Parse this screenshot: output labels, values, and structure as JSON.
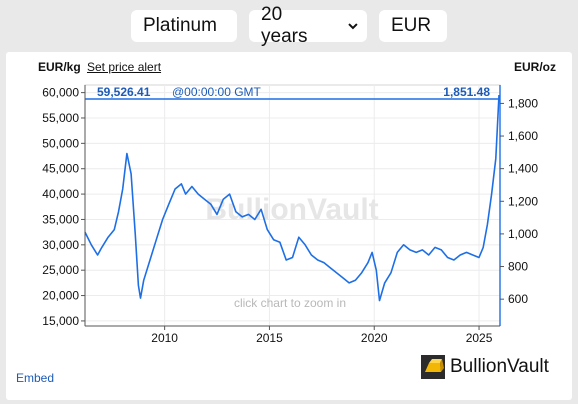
{
  "selectors": {
    "metal": "Platinum",
    "period": "20 years",
    "currency": "EUR"
  },
  "header": {
    "left_unit": "EUR/kg",
    "price_alert": "Set price alert",
    "right_unit": "EUR/oz"
  },
  "readout": {
    "kg_value": "59,526.41",
    "time": "@00:00:00 GMT",
    "oz_value": "1,851.48"
  },
  "watermark": "BullionVault",
  "hint": "click chart to zoom in",
  "footer": {
    "embed": "Embed",
    "logo": "BullionVault"
  },
  "colors": {
    "line": "#1e6fe6",
    "accent_blue": "#1c5bb8",
    "logo_gold": "#f2b705"
  },
  "chart_data": {
    "type": "line",
    "x_ticks": [
      "2010",
      "2015",
      "2020",
      "2025"
    ],
    "y_left_ticks": [
      "15,000",
      "20,000",
      "25,000",
      "30,000",
      "35,000",
      "40,000",
      "45,000",
      "50,000",
      "55,000",
      "60,000"
    ],
    "y_right_ticks": [
      "600",
      "800",
      "1,000",
      "1,200",
      "1,400",
      "1,600",
      "1,800"
    ],
    "ylim": [
      14000,
      61500
    ],
    "xlim": [
      2006.2,
      2026.0
    ],
    "x": [
      2006.2,
      2006.5,
      2006.8,
      2007.0,
      2007.3,
      2007.6,
      2007.8,
      2008.0,
      2008.2,
      2008.4,
      2008.6,
      2008.75,
      2008.85,
      2009.0,
      2009.3,
      2009.6,
      2009.9,
      2010.2,
      2010.5,
      2010.8,
      2011.0,
      2011.3,
      2011.6,
      2011.9,
      2012.2,
      2012.5,
      2012.8,
      2013.1,
      2013.4,
      2013.7,
      2014.0,
      2014.3,
      2014.6,
      2014.9,
      2015.2,
      2015.5,
      2015.8,
      2016.1,
      2016.4,
      2016.7,
      2017.0,
      2017.3,
      2017.6,
      2017.9,
      2018.2,
      2018.5,
      2018.8,
      2019.1,
      2019.4,
      2019.7,
      2019.9,
      2020.1,
      2020.25,
      2020.5,
      2020.8,
      2021.1,
      2021.4,
      2021.7,
      2022.0,
      2022.3,
      2022.6,
      2022.9,
      2023.2,
      2023.5,
      2023.8,
      2024.1,
      2024.4,
      2024.7,
      2025.0,
      2025.2,
      2025.4,
      2025.6,
      2025.8,
      2025.95
    ],
    "y": [
      32500,
      30000,
      28000,
      29500,
      31500,
      33000,
      36500,
      41000,
      48000,
      44000,
      32000,
      22000,
      19500,
      23000,
      27000,
      31000,
      35000,
      38000,
      41000,
      42000,
      40000,
      41500,
      40000,
      39000,
      38000,
      36000,
      39000,
      40000,
      36500,
      35500,
      36000,
      35000,
      37000,
      33000,
      31000,
      30500,
      27000,
      27500,
      31500,
      30000,
      28000,
      27000,
      26500,
      25500,
      24500,
      23500,
      22500,
      23000,
      24500,
      26500,
      28500,
      25000,
      19000,
      22500,
      24500,
      28500,
      30000,
      29000,
      28500,
      29000,
      28000,
      29500,
      29000,
      27500,
      27000,
      28000,
      28500,
      28000,
      27500,
      29500,
      34000,
      40000,
      47000,
      59526
    ]
  }
}
